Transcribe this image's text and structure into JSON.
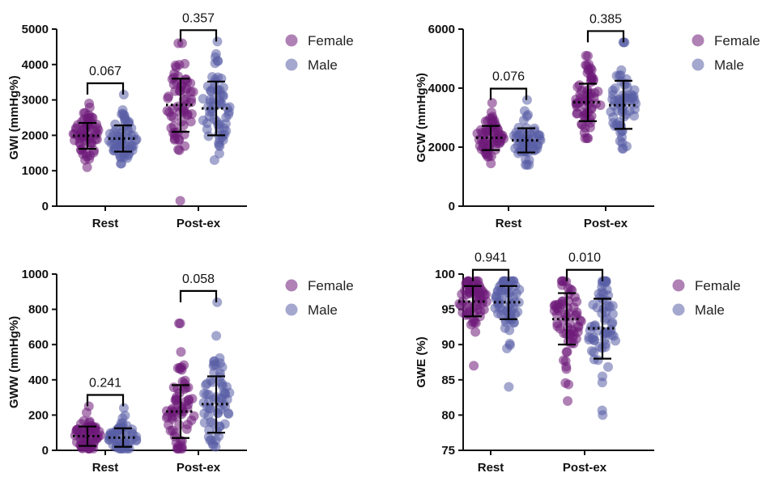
{
  "legend": [
    {
      "name": "Female",
      "color": "#6e1a78"
    },
    {
      "name": "Male",
      "color": "#5a5ea6"
    }
  ],
  "chart_data": [
    {
      "type": "scatter",
      "ylabel": "GWI (mmHg%)",
      "ylim": [
        0,
        5000
      ],
      "yticks": [
        0,
        1000,
        2000,
        3000,
        4000,
        5000
      ],
      "categories": [
        "Rest",
        "Post-ex"
      ],
      "series": [
        {
          "name": "Female",
          "mean": [
            1990,
            2860
          ],
          "sd_low": [
            1620,
            2100
          ],
          "sd_high": [
            2350,
            3600
          ],
          "range": [
            [
              1100,
              2900
            ],
            [
              150,
              4600
            ]
          ]
        },
        {
          "name": "Male",
          "mean": [
            1910,
            2760
          ],
          "sd_low": [
            1540,
            2000
          ],
          "sd_high": [
            2280,
            3520
          ],
          "range": [
            [
              1200,
              3150
            ],
            [
              1300,
              4650
            ]
          ]
        }
      ],
      "comparisons": [
        {
          "category": "Rest",
          "p": "0.067"
        },
        {
          "category": "Post-ex",
          "p": "0.357"
        }
      ]
    },
    {
      "type": "scatter",
      "ylabel": "GCW (mmHg%)",
      "ylim": [
        0,
        6000
      ],
      "yticks": [
        0,
        2000,
        4000,
        6000
      ],
      "categories": [
        "Rest",
        "Post-ex"
      ],
      "series": [
        {
          "name": "Female",
          "mean": [
            2320,
            3520
          ],
          "sd_low": [
            1900,
            2880
          ],
          "sd_high": [
            2720,
            4150
          ],
          "range": [
            [
              1450,
              3500
            ],
            [
              2300,
              5100
            ]
          ]
        },
        {
          "name": "Male",
          "mean": [
            2230,
            3420
          ],
          "sd_low": [
            1820,
            2620
          ],
          "sd_high": [
            2640,
            4250
          ],
          "range": [
            [
              1400,
              3600
            ],
            [
              1950,
              5550
            ]
          ]
        }
      ],
      "comparisons": [
        {
          "category": "Rest",
          "p": "0.076"
        },
        {
          "category": "Post-ex",
          "p": "0.385"
        }
      ]
    },
    {
      "type": "scatter",
      "ylabel": "GWW (mmHg%)",
      "ylim": [
        0,
        1000
      ],
      "yticks": [
        0,
        200,
        400,
        600,
        800,
        1000
      ],
      "categories": [
        "Rest",
        "Post-ex"
      ],
      "series": [
        {
          "name": "Female",
          "mean": [
            80,
            220
          ],
          "sd_low": [
            25,
            70
          ],
          "sd_high": [
            135,
            370
          ],
          "range": [
            [
              10,
              250
            ],
            [
              10,
              720
            ]
          ]
        },
        {
          "name": "Male",
          "mean": [
            72,
            262
          ],
          "sd_low": [
            20,
            100
          ],
          "sd_high": [
            125,
            420
          ],
          "range": [
            [
              10,
              240
            ],
            [
              20,
              840
            ]
          ]
        }
      ],
      "comparisons": [
        {
          "category": "Rest",
          "p": "0.241"
        },
        {
          "category": "Post-ex",
          "p": "0.058"
        }
      ]
    },
    {
      "type": "scatter",
      "ylabel": "GWE (%)",
      "ylim": [
        75,
        100
      ],
      "yticks": [
        75,
        80,
        85,
        90,
        95,
        100
      ],
      "categories": [
        "Rest",
        "Post-ex"
      ],
      "series": [
        {
          "name": "Female",
          "mean": [
            96.1,
            93.6
          ],
          "sd_low": [
            94.0,
            90.0
          ],
          "sd_high": [
            98.3,
            97.3
          ],
          "range": [
            [
              87,
              99
            ],
            [
              82,
              99
            ]
          ]
        },
        {
          "name": "Male",
          "mean": [
            96.0,
            92.3
          ],
          "sd_low": [
            93.6,
            88.0
          ],
          "sd_high": [
            98.3,
            96.5
          ],
          "range": [
            [
              84,
              99
            ],
            [
              80,
              99
            ]
          ]
        }
      ],
      "comparisons": [
        {
          "category": "Rest",
          "p": "0.941"
        },
        {
          "category": "Post-ex",
          "p": "0.010"
        }
      ]
    }
  ]
}
